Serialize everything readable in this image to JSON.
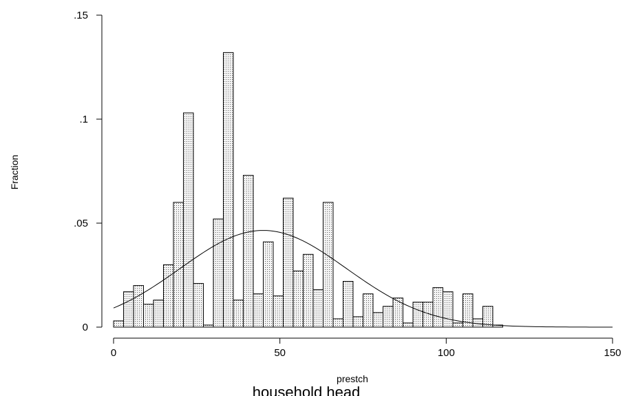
{
  "chart_data": {
    "type": "bar",
    "subtype": "histogram with normal density overlay",
    "xlabel": "prestch",
    "caption": "household head",
    "ylabel": "Fraction",
    "xlim": [
      0,
      150
    ],
    "ylim": [
      0,
      0.15
    ],
    "x_ticks": [
      0,
      50,
      100,
      150
    ],
    "x_tick_labels": [
      "0",
      "50",
      "100",
      "150"
    ],
    "y_ticks": [
      0,
      0.05,
      0.1,
      0.15
    ],
    "y_tick_labels": [
      "0",
      ".05",
      ".1",
      ".15"
    ],
    "bin_width": 3,
    "bins": [
      {
        "start": 0,
        "value": 0.003
      },
      {
        "start": 3,
        "value": 0.017
      },
      {
        "start": 6,
        "value": 0.02
      },
      {
        "start": 9,
        "value": 0.011
      },
      {
        "start": 12,
        "value": 0.013
      },
      {
        "start": 15,
        "value": 0.03
      },
      {
        "start": 18,
        "value": 0.06
      },
      {
        "start": 21,
        "value": 0.103
      },
      {
        "start": 24,
        "value": 0.021
      },
      {
        "start": 27,
        "value": 0.001
      },
      {
        "start": 30,
        "value": 0.052
      },
      {
        "start": 33,
        "value": 0.132
      },
      {
        "start": 36,
        "value": 0.013
      },
      {
        "start": 39,
        "value": 0.073
      },
      {
        "start": 42,
        "value": 0.016
      },
      {
        "start": 45,
        "value": 0.041
      },
      {
        "start": 48,
        "value": 0.015
      },
      {
        "start": 51,
        "value": 0.062
      },
      {
        "start": 54,
        "value": 0.027
      },
      {
        "start": 57,
        "value": 0.035
      },
      {
        "start": 60,
        "value": 0.018
      },
      {
        "start": 63,
        "value": 0.06
      },
      {
        "start": 66,
        "value": 0.004
      },
      {
        "start": 69,
        "value": 0.022
      },
      {
        "start": 72,
        "value": 0.005
      },
      {
        "start": 75,
        "value": 0.016
      },
      {
        "start": 78,
        "value": 0.007
      },
      {
        "start": 81,
        "value": 0.01
      },
      {
        "start": 84,
        "value": 0.014
      },
      {
        "start": 87,
        "value": 0.002
      },
      {
        "start": 90,
        "value": 0.012
      },
      {
        "start": 93,
        "value": 0.012
      },
      {
        "start": 96,
        "value": 0.019
      },
      {
        "start": 99,
        "value": 0.017
      },
      {
        "start": 102,
        "value": 0.002
      },
      {
        "start": 105,
        "value": 0.016
      },
      {
        "start": 108,
        "value": 0.004
      },
      {
        "start": 111,
        "value": 0.01
      },
      {
        "start": 114,
        "value": 0.001
      }
    ],
    "density_curve": {
      "type": "normal",
      "mean": 45,
      "sd": 25,
      "scale": 0.0465
    },
    "grid": false,
    "legend": "none",
    "colors": {
      "bar_fill": "#f4f4f4",
      "bar_dots": "#555555",
      "bar_edge": "#000000",
      "curve": "#000000",
      "axis": "#000000"
    }
  }
}
